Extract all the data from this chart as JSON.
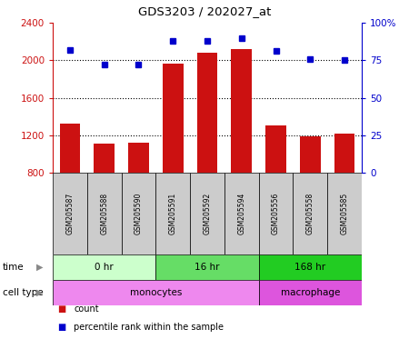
{
  "title": "GDS3203 / 202027_at",
  "samples": [
    "GSM205587",
    "GSM205588",
    "GSM205590",
    "GSM205591",
    "GSM205592",
    "GSM205594",
    "GSM205556",
    "GSM205558",
    "GSM205585"
  ],
  "bar_values": [
    1320,
    1110,
    1120,
    1960,
    2080,
    2120,
    1300,
    1185,
    1220
  ],
  "dot_values": [
    82,
    72,
    72,
    88,
    88,
    90,
    81,
    76,
    75
  ],
  "bar_bottom": 800,
  "ylim_left": [
    800,
    2400
  ],
  "ylim_right": [
    0,
    100
  ],
  "yticks_left": [
    800,
    1200,
    1600,
    2000,
    2400
  ],
  "yticks_right": [
    0,
    25,
    50,
    75,
    100
  ],
  "yticklabels_right": [
    "0",
    "25",
    "50",
    "75",
    "100%"
  ],
  "bar_color": "#cc1111",
  "dot_color": "#0000cc",
  "time_groups": [
    {
      "label": "0 hr",
      "start": 0,
      "end": 3,
      "color": "#ccffcc"
    },
    {
      "label": "16 hr",
      "start": 3,
      "end": 6,
      "color": "#66dd66"
    },
    {
      "label": "168 hr",
      "start": 6,
      "end": 9,
      "color": "#22cc22"
    }
  ],
  "cell_type_groups": [
    {
      "label": "monocytes",
      "start": 0,
      "end": 6,
      "color": "#ee88ee"
    },
    {
      "label": "macrophage",
      "start": 6,
      "end": 9,
      "color": "#dd55dd"
    }
  ],
  "legend_items": [
    {
      "color": "#cc1111",
      "label": "count"
    },
    {
      "color": "#0000cc",
      "label": "percentile rank within the sample"
    }
  ],
  "sample_bg_color": "#cccccc"
}
